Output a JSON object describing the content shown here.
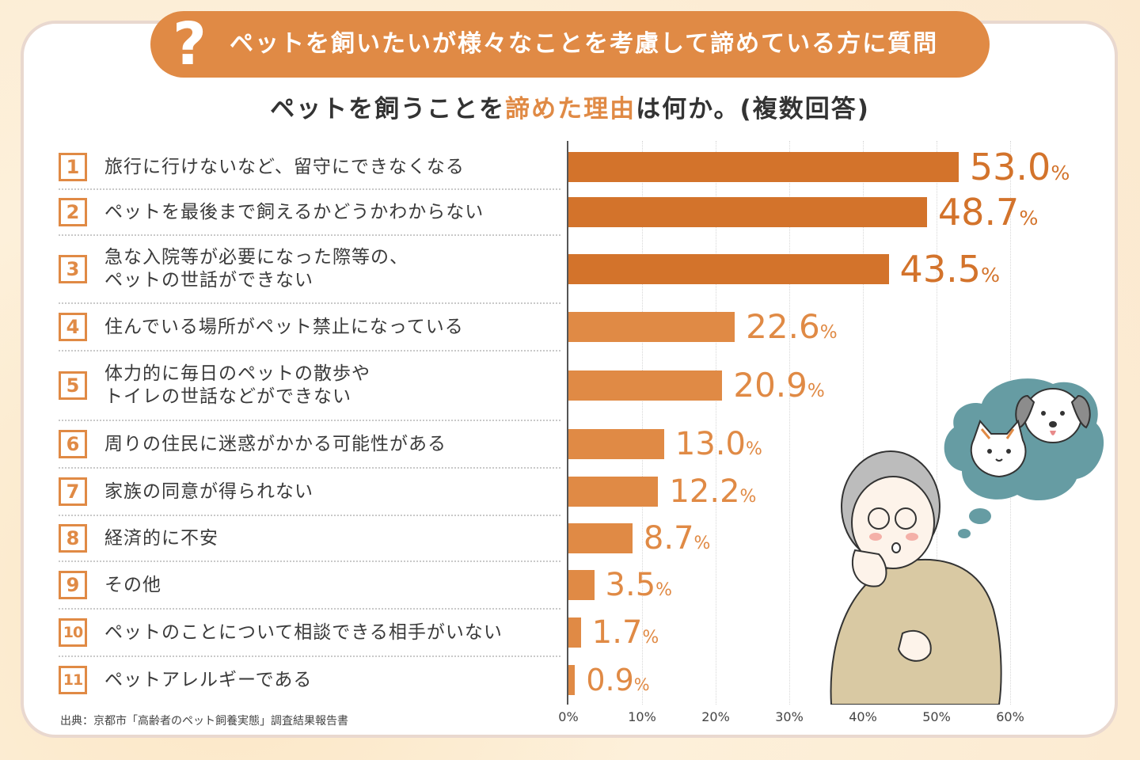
{
  "banner": {
    "icon": "?",
    "text": "ペットを飼いたいが様々なことを考慮して諦めている方に質問"
  },
  "subtitle": {
    "before": "ペットを飼うことを",
    "highlight": "諦めた理由",
    "after": "は何か。(複数回答)"
  },
  "colors": {
    "accent": "#e08a45",
    "bar_dark": "#d3732b",
    "bar_light": "#e08a45",
    "value_dark": "#d3732b",
    "value_light": "#e08a45"
  },
  "source": "出典：京都市「高齢者のペット飼養実態」調査結果報告書",
  "chart_data": {
    "type": "bar",
    "orientation": "horizontal",
    "title": "ペットを飼うことを諦めた理由は何か。(複数回答)",
    "categories": [
      "旅行に行けないなど、留守にできなくなる",
      "ペットを最後まで飼えるかどうかわからない",
      "急な入院等が必要になった際等の、ペットの世話ができない",
      "住んでいる場所がペット禁止になっている",
      "体力的に毎日のペットの散歩やトイレの世話などができない",
      "周りの住民に迷惑がかかる可能性がある",
      "家族の同意が得られない",
      "経済的に不安",
      "その他",
      "ペットのことについて相談できる相手がいない",
      "ペットアレルギーである"
    ],
    "values": [
      53.0,
      48.7,
      43.5,
      22.6,
      20.9,
      13.0,
      12.2,
      8.7,
      3.5,
      1.7,
      0.9
    ],
    "value_labels": [
      "53.0",
      "48.7",
      "43.5",
      "22.6",
      "20.9",
      "13.0",
      "12.2",
      "8.7",
      "3.5",
      "1.7",
      "0.9"
    ],
    "unit": "%",
    "xlim": [
      0,
      60
    ],
    "ticks": [
      "0%",
      "10%",
      "20%",
      "30%",
      "40%",
      "50%",
      "60%"
    ],
    "grid": true,
    "highlighted_top": 3
  },
  "items": [
    {
      "num": "1",
      "lines": [
        "旅行に行けないなど、留守にできなくなる"
      ]
    },
    {
      "num": "2",
      "lines": [
        "ペットを最後まで飼えるかどうかわからない"
      ]
    },
    {
      "num": "3",
      "lines": [
        "急な入院等が必要になった際等の、",
        "ペットの世話ができない"
      ]
    },
    {
      "num": "4",
      "lines": [
        "住んでいる場所がペット禁止になっている"
      ]
    },
    {
      "num": "5",
      "lines": [
        "体力的に毎日のペットの散歩や",
        "トイレの世話などができない"
      ]
    },
    {
      "num": "6",
      "lines": [
        "周りの住民に迷惑がかかる可能性がある"
      ]
    },
    {
      "num": "7",
      "lines": [
        "家族の同意が得られない"
      ]
    },
    {
      "num": "8",
      "lines": [
        "経済的に不安"
      ]
    },
    {
      "num": "9",
      "lines": [
        "その他"
      ]
    },
    {
      "num": "10",
      "lines": [
        "ペットのことについて相談できる相手がいない"
      ]
    },
    {
      "num": "11",
      "lines": [
        "ペットアレルギーである"
      ]
    }
  ],
  "illustration": {
    "icons": [
      "elderly-person-icon",
      "dog-icon",
      "cat-icon",
      "thought-bubble-icon"
    ]
  }
}
